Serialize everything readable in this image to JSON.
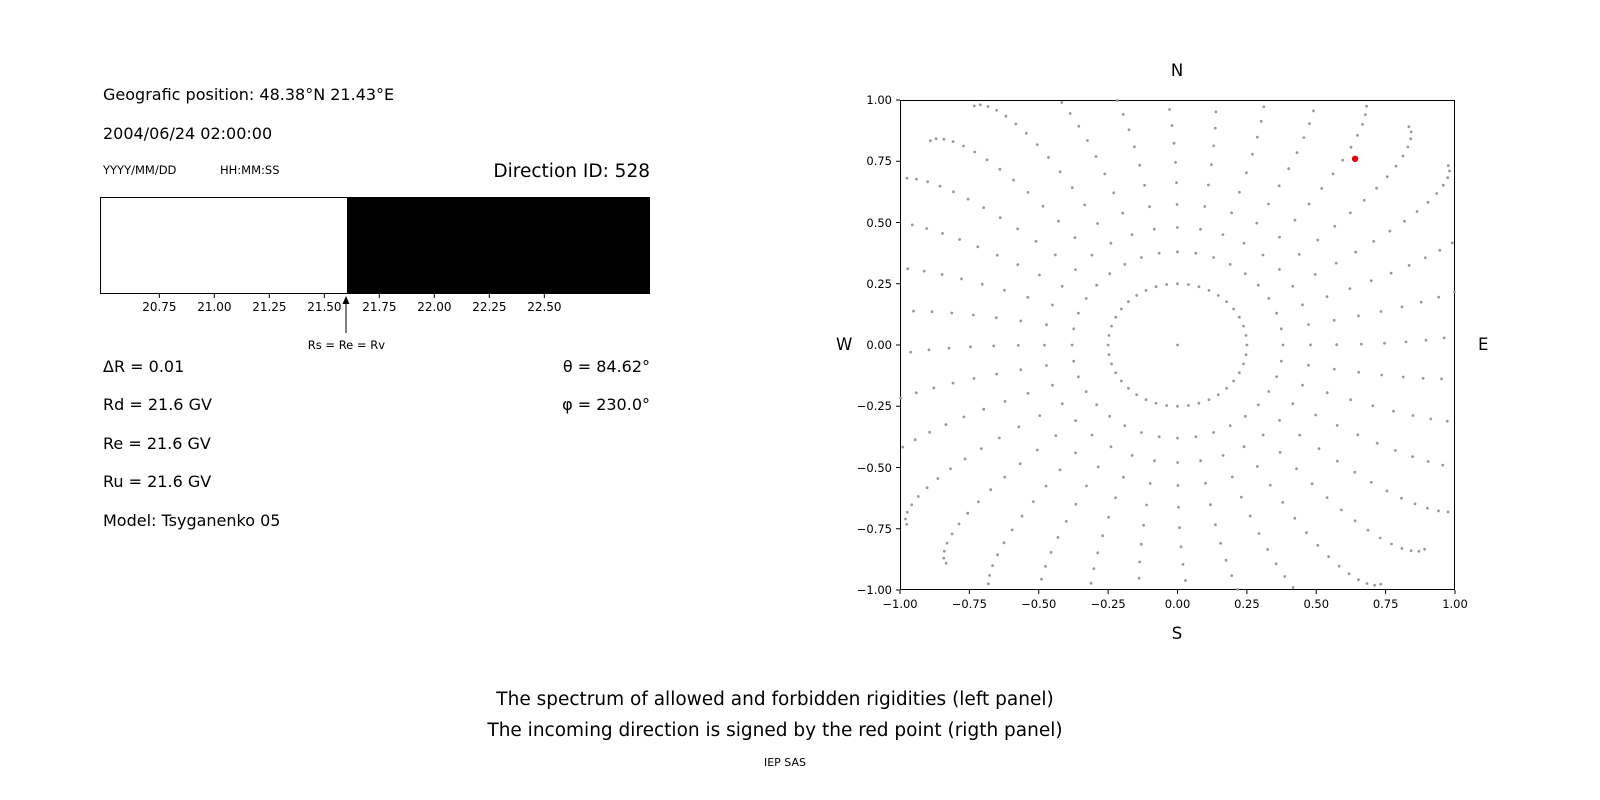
{
  "left_panel": {
    "geographic_position": "Geografic position: 48.38°N 21.43°E",
    "datetime": "2004/06/24 02:00:00",
    "date_format_label": "YYYY/MM/DD",
    "time_format_label": "HH:MM:SS",
    "direction_id_label": "Direction ID: 528",
    "arrow_label": "Rs = Re = Rv",
    "parameters_left": [
      "ΔR = 0.01",
      "Rd = 21.6 GV",
      "Re = 21.6 GV",
      "Ru = 21.6 GV",
      "Model: Tsyganenko 05"
    ],
    "parameters_right": [
      "θ = 84.62°",
      "φ = 230.0°"
    ]
  },
  "captions": {
    "line1": "The spectrum of allowed and forbidden rigidities (left panel)",
    "line2": "The incoming direction is signed by the red point (rigth panel)",
    "credit": "IEP SAS"
  },
  "chart_data": [
    {
      "type": "bar",
      "title": "Direction ID: 528",
      "description": "Rigidity spectrum: white band = allowed rigidities, black band = forbidden rigidities",
      "x_range": [
        20.48,
        22.98
      ],
      "tick_values": [
        20.75,
        21.0,
        21.25,
        21.5,
        21.75,
        22.0,
        22.25,
        22.5
      ],
      "tick_labels": [
        "20.75",
        "21.00",
        "21.25",
        "21.50",
        "21.75",
        "22.00",
        "22.25",
        "22.50"
      ],
      "allowed_region": {
        "from": 20.48,
        "to": 21.6,
        "color": "#ffffff"
      },
      "forbidden_region": {
        "from": 21.6,
        "to": 22.98,
        "color": "#000000"
      },
      "marker": {
        "x": 21.6,
        "label": "Rs = Re = Rv"
      },
      "values_gv": {
        "delta_r": 0.01,
        "rd": 21.6,
        "re": 21.6,
        "ru": 21.6
      },
      "model": "Tsyganenko 05",
      "theta_deg": 84.62,
      "phi_deg": 230.0
    },
    {
      "type": "scatter",
      "xlim": [
        -1,
        1
      ],
      "ylim": [
        -1,
        1
      ],
      "xtick_labels": [
        "−1.00",
        "−0.75",
        "−0.50",
        "−0.25",
        "0.00",
        "0.25",
        "0.50",
        "0.75",
        "1.00"
      ],
      "ytick_labels": [
        "1.00",
        "0.75",
        "0.50",
        "0.25",
        "0.00",
        "−0.25",
        "−0.50",
        "−0.75",
        "−1.00"
      ],
      "compass": {
        "top": "N",
        "bottom": "S",
        "left": "W",
        "right": "E"
      },
      "grid": false,
      "point_color": "#999999",
      "red_color": "#e8000b",
      "red_point": {
        "x": 0.64,
        "y": 0.76
      },
      "red_point_radius": 3.2,
      "pattern": {
        "ring_radius": 0.25,
        "ring_points": 40,
        "spokes": 36,
        "points_per_spoke": 15,
        "r_start": 0.38,
        "r_end": 1.22,
        "density_power": 1.7,
        "curvature": 0.12,
        "dot_radius": 1.4
      }
    }
  ]
}
